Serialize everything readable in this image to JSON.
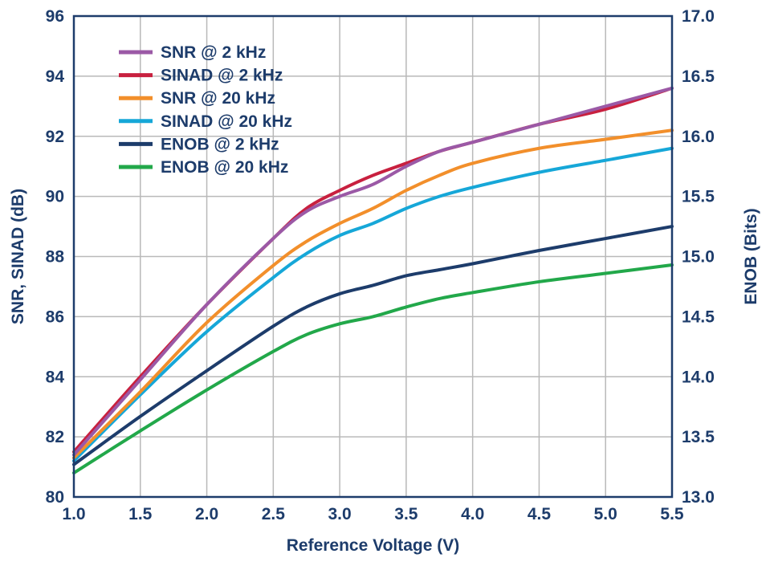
{
  "chart_data": {
    "type": "line",
    "xlabel": "Reference Voltage (V)",
    "ylabel": "SNR, SINAD (dB)",
    "y2label": "ENOB (Bits)",
    "xlim": [
      1.0,
      5.5
    ],
    "ylim": [
      80,
      96
    ],
    "y2lim": [
      13.0,
      17.0
    ],
    "x_ticks": [
      "1.0",
      "1.5",
      "2.0",
      "2.5",
      "3.0",
      "3.5",
      "4.0",
      "4.5",
      "5.0",
      "5.5"
    ],
    "y_ticks": [
      "80",
      "82",
      "84",
      "86",
      "88",
      "90",
      "92",
      "94",
      "96"
    ],
    "y2_ticks": [
      "13.0",
      "13.5",
      "14.0",
      "14.5",
      "15.0",
      "15.5",
      "16.0",
      "16.5",
      "17.0"
    ],
    "grid": true,
    "legend_position": "top-left",
    "series": [
      {
        "name": "SNR @ 2 kHz",
        "axis": "left",
        "color": "#9b59a6",
        "x": [
          1.0,
          1.5,
          2.0,
          2.5,
          2.75,
          3.0,
          3.25,
          3.5,
          3.75,
          4.0,
          4.5,
          5.0,
          5.5
        ],
        "y": [
          81.4,
          83.9,
          86.4,
          88.6,
          89.5,
          90.0,
          90.4,
          91.0,
          91.5,
          91.8,
          92.4,
          93.0,
          93.6
        ]
      },
      {
        "name": "SINAD @ 2 kHz",
        "axis": "left",
        "color": "#c8203f",
        "x": [
          1.0,
          1.5,
          2.0,
          2.5,
          2.75,
          3.0,
          3.25,
          3.5,
          3.75,
          4.0,
          4.5,
          5.0,
          5.5
        ],
        "y": [
          81.5,
          84.0,
          86.4,
          88.6,
          89.6,
          90.2,
          90.7,
          91.1,
          91.5,
          91.8,
          92.4,
          92.9,
          93.6
        ]
      },
      {
        "name": "SNR @ 20 kHz",
        "axis": "left",
        "color": "#f28f2b",
        "x": [
          1.0,
          1.5,
          2.0,
          2.5,
          2.75,
          3.0,
          3.25,
          3.5,
          3.75,
          4.0,
          4.5,
          5.0,
          5.5
        ],
        "y": [
          81.3,
          83.5,
          85.8,
          87.7,
          88.5,
          89.1,
          89.6,
          90.2,
          90.7,
          91.1,
          91.6,
          91.9,
          92.2
        ]
      },
      {
        "name": "SINAD @ 20 kHz",
        "axis": "left",
        "color": "#16a7d8",
        "x": [
          1.0,
          1.5,
          2.0,
          2.5,
          2.75,
          3.0,
          3.25,
          3.5,
          3.75,
          4.0,
          4.5,
          5.0,
          5.5
        ],
        "y": [
          81.2,
          83.4,
          85.5,
          87.3,
          88.1,
          88.7,
          89.1,
          89.6,
          90.0,
          90.3,
          90.8,
          91.2,
          91.6
        ]
      },
      {
        "name": "ENOB @ 2 kHz",
        "axis": "right",
        "color": "#1d3c6b",
        "x": [
          1.0,
          1.5,
          2.0,
          2.5,
          2.75,
          3.0,
          3.25,
          3.5,
          3.75,
          4.0,
          4.5,
          5.0,
          5.5
        ],
        "y": [
          13.27,
          13.67,
          14.05,
          14.42,
          14.58,
          14.69,
          14.76,
          14.84,
          14.89,
          14.94,
          15.05,
          15.15,
          15.25
        ]
      },
      {
        "name": "ENOB @ 20 kHz",
        "axis": "right",
        "color": "#22a84a",
        "x": [
          1.0,
          1.5,
          2.0,
          2.5,
          2.75,
          3.0,
          3.25,
          3.5,
          3.75,
          4.0,
          4.5,
          5.0,
          5.5
        ],
        "y": [
          13.2,
          13.55,
          13.89,
          14.21,
          14.35,
          14.44,
          14.5,
          14.58,
          14.65,
          14.7,
          14.79,
          14.86,
          14.93
        ]
      }
    ]
  }
}
